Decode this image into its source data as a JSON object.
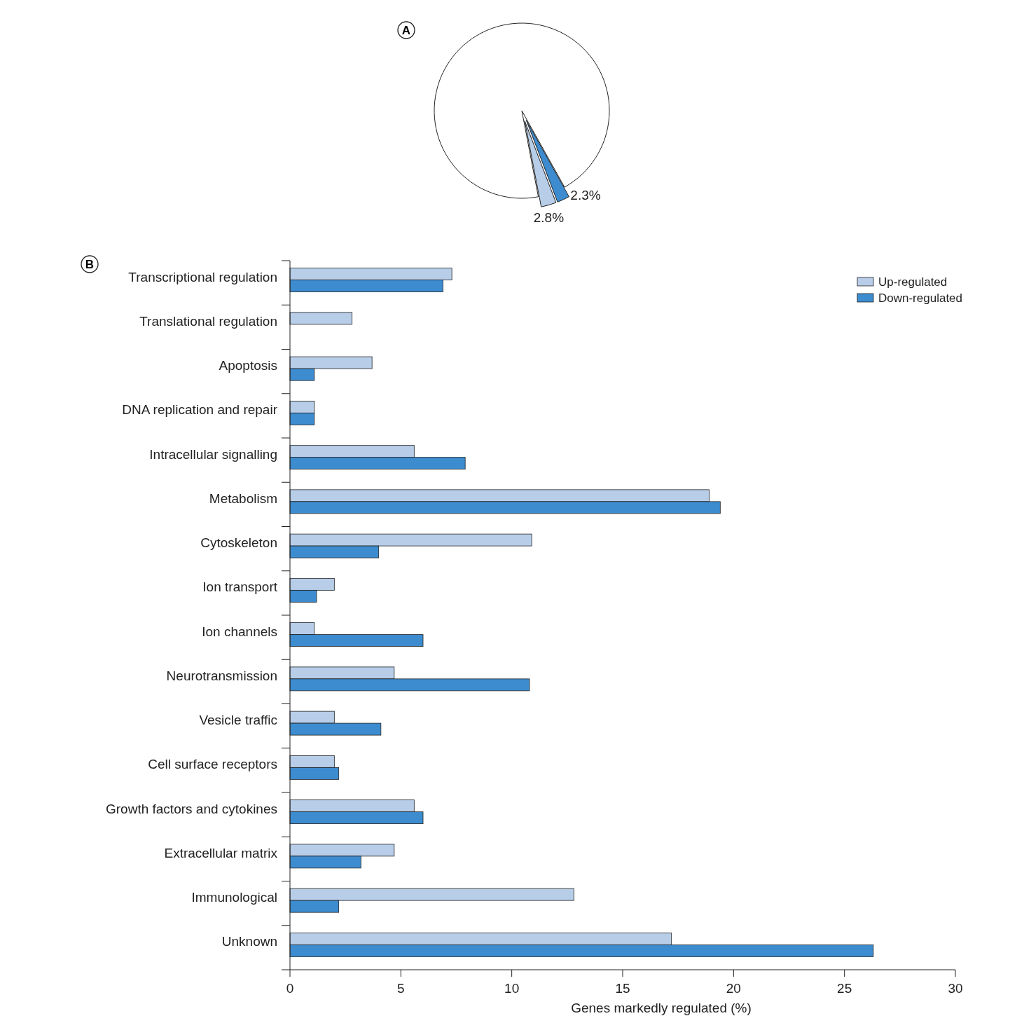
{
  "chart_data": [
    {
      "type": "pie",
      "title": "A",
      "categories": [
        null,
        null,
        null
      ],
      "values": [
        2.3,
        2.8,
        94.9
      ],
      "colors": [
        "#3d8ccf",
        "#b7cde8",
        "#ffffff"
      ],
      "value_labels": [
        "2.3%",
        "2.8%",
        null
      ],
      "legend": false
    },
    {
      "type": "bar",
      "title": "B",
      "orientation": "horizontal",
      "categories": [
        "Transcriptional regulation",
        "Translational regulation",
        "Apoptosis",
        "DNA replication and repair",
        "Intracellular signalling",
        "Metabolism",
        "Cytoskeleton",
        "Ion transport",
        "Ion channels",
        "Neurotransmission",
        "Vesicle traffic",
        "Cell surface receptors",
        "Growth factors and cytokines",
        "Extracellular matrix",
        "Immunological",
        "Unknown"
      ],
      "series": [
        {
          "name": "Up-regulated",
          "color": "#b7cde8",
          "values": [
            7.3,
            2.8,
            3.7,
            1.1,
            5.6,
            18.9,
            10.9,
            2.0,
            1.1,
            4.7,
            2.0,
            2.0,
            5.6,
            4.7,
            12.8,
            17.2
          ]
        },
        {
          "name": "Down-regulated",
          "color": "#3d8ccf",
          "values": [
            6.9,
            null,
            1.1,
            1.1,
            7.9,
            19.4,
            4.0,
            1.2,
            6.0,
            10.8,
            4.1,
            2.2,
            6.0,
            3.2,
            2.2,
            26.3
          ]
        }
      ],
      "xlim": [
        0,
        30
      ],
      "xticks": [
        0,
        5,
        10,
        15,
        20,
        25,
        30
      ],
      "xlabel": "Genes markedly regulated (%)",
      "legend": "top right",
      "grid": false
    }
  ]
}
